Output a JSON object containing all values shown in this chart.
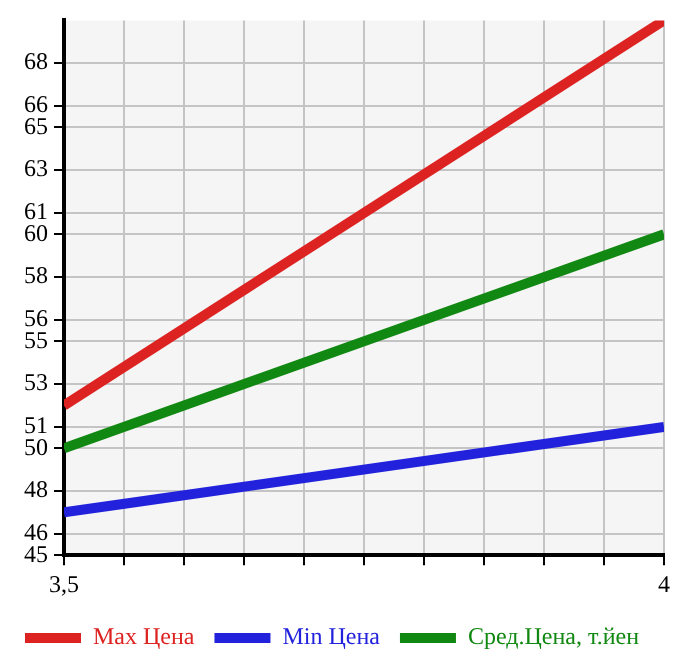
{
  "chart_data": {
    "type": "line",
    "x": [
      3.5,
      4
    ],
    "series": [
      {
        "name": "Max Цена",
        "color": "#dd2222",
        "values": [
          52,
          70
        ]
      },
      {
        "name": "Min Цена",
        "color": "#2222dd",
        "values": [
          47,
          51
        ]
      },
      {
        "name": "Сред.Цена, т.йен",
        "color": "#118811",
        "values": [
          50,
          60
        ]
      }
    ],
    "xlim": [
      3.5,
      4
    ],
    "xticks": [
      {
        "value": 3.5,
        "label": "3,5"
      },
      {
        "value": 3.55,
        "label": null
      },
      {
        "value": 3.6,
        "label": null
      },
      {
        "value": 3.65,
        "label": null
      },
      {
        "value": 3.7,
        "label": null
      },
      {
        "value": 3.75,
        "label": null
      },
      {
        "value": 3.8,
        "label": null
      },
      {
        "value": 3.85,
        "label": null
      },
      {
        "value": 3.9,
        "label": null
      },
      {
        "value": 3.95,
        "label": null
      },
      4
    ],
    "ylim": [
      45,
      70
    ],
    "yticks": [
      45,
      46,
      48,
      50,
      51,
      53,
      55,
      56,
      58,
      60,
      61,
      63,
      65,
      66,
      68
    ],
    "grid": true,
    "legend": "bottom",
    "marker": "none",
    "line_style": "solid"
  }
}
